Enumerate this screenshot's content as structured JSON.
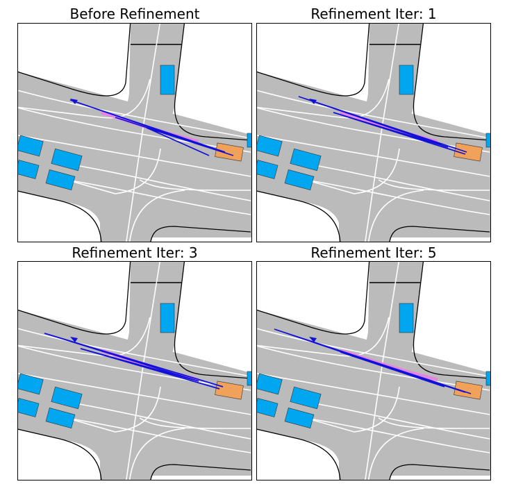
{
  "figure": {
    "panels": [
      {
        "title": "Before Refinement"
      },
      {
        "title": "Refinement Iter: 1"
      },
      {
        "title": "Refinement Iter: 3"
      },
      {
        "title": "Refinement Iter: 5"
      }
    ]
  },
  "colors": {
    "road": "#bbbbbb",
    "lane_line": "#ffffff",
    "road_edge": "#000000",
    "other_vehicle": "#00a6ef",
    "ego_vehicle": "#f0a15a",
    "trajectory": "#1010d8",
    "ground_truth": "#e97ce9"
  }
}
